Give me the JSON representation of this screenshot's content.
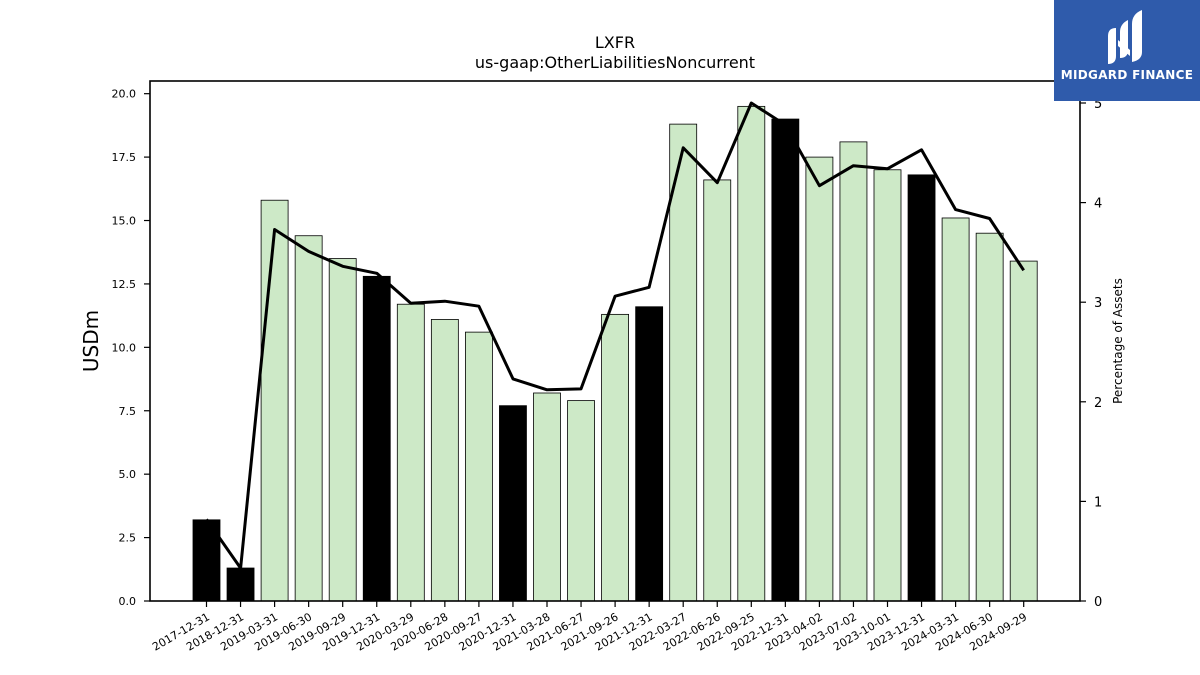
{
  "chart_data": {
    "type": "bar",
    "title": "LXFR",
    "subtitle": "us-gaap:OtherLiabilitiesNoncurrent",
    "ylabel": "USDm",
    "y2label": "Percentage of Assets",
    "ylim": [
      0,
      20.5
    ],
    "y2lim": [
      0,
      5.0
    ],
    "yticks": [
      "0.0",
      "2.5",
      "5.0",
      "7.5",
      "10.0",
      "12.5",
      "15.0",
      "17.5",
      "20.0"
    ],
    "y2ticks": [
      "0",
      "1",
      "2",
      "3",
      "4",
      "5"
    ],
    "categories": [
      "2017-12-31",
      "2018-12-31",
      "2019-03-31",
      "2019-06-30",
      "2019-09-29",
      "2019-12-31",
      "2020-03-29",
      "2020-06-28",
      "2020-09-27",
      "2020-12-31",
      "2021-03-28",
      "2021-06-27",
      "2021-09-26",
      "2021-12-31",
      "2022-03-27",
      "2022-06-26",
      "2022-09-25",
      "2022-12-31",
      "2023-04-02",
      "2023-07-02",
      "2023-10-01",
      "2023-12-31",
      "2024-03-31",
      "2024-06-30",
      "2024-09-29"
    ],
    "series": [
      {
        "values": [
          3.2,
          1.3,
          15.8,
          14.4,
          13.5,
          12.8,
          11.7,
          11.1,
          10.6,
          7.7,
          8.2,
          7.9,
          11.3,
          11.6,
          18.8,
          16.6,
          19.5,
          19.0,
          17.5,
          18.1,
          17.0,
          16.8,
          15.1,
          14.5,
          13.4
        ],
        "annual": [
          true,
          true,
          false,
          false,
          false,
          true,
          false,
          false,
          false,
          true,
          false,
          false,
          false,
          true,
          false,
          false,
          false,
          true,
          false,
          false,
          false,
          true,
          false,
          false,
          false
        ]
      },
      {
        "axis": "right",
        "values": [
          0.82,
          0.33,
          3.73,
          3.51,
          3.36,
          3.29,
          2.99,
          3.01,
          2.96,
          2.23,
          2.12,
          2.13,
          3.06,
          3.15,
          4.55,
          4.2,
          5.0,
          4.78,
          4.17,
          4.37,
          4.34,
          4.53,
          3.93,
          3.84,
          3.32
        ]
      }
    ],
    "colors": {
      "annual_bar": "#000000",
      "quarter_bar": "#cde9c7",
      "bar_edge": "#000000",
      "line": "#000000"
    }
  },
  "logo": {
    "text": "MIDGARD FINANCE",
    "bg": "#2f5bab"
  }
}
